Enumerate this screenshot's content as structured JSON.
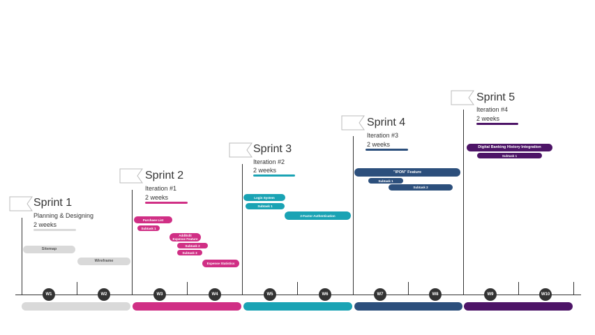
{
  "sprints": [
    {
      "title": "Sprint 1",
      "line1": "Planning & Designing",
      "line2": "2 weeks",
      "color": "#d9d9d9"
    },
    {
      "title": "Sprint 2",
      "line1": "Iteration #1",
      "line2": "2 weeks",
      "color": "#d02f85"
    },
    {
      "title": "Sprint 3",
      "line1": "Iteration #2",
      "line2": "2 weeks",
      "color": "#1aa3b4"
    },
    {
      "title": "Sprint 4",
      "line1": "Iteration #3",
      "line2": "2 weeks",
      "color": "#2c4f7c"
    },
    {
      "title": "Sprint 5",
      "line1": "Iteration #4",
      "line2": "2 weeks",
      "color": "#4d1467"
    }
  ],
  "tasks": {
    "sitemap": "Sitemap",
    "wireframe": "Wireframe",
    "purchase_list": "Purchase List",
    "s2_subtask1": "Subtask 1",
    "add_edit_1": "Add/Edit",
    "add_edit_2": "Expense Feature",
    "s2_subtask2": "Subtask 2",
    "s2_subtask3": "Subtask 3",
    "expense_stats": "Expense Statistics",
    "login_system": "Login System",
    "s3_subtask1": "Subtask 1",
    "two_factor": "2-Factor Authentication",
    "ipon": "\"IPON\" Feature",
    "s4_subtask1": "Subtask 1",
    "s4_subtask2": "Subtask 2",
    "digital_banking": "Digital Banking History Integration",
    "s5_subtask1": "Subtask 1"
  },
  "weeks": [
    "W1",
    "W2",
    "W3",
    "W4",
    "W5",
    "W6",
    "W7",
    "W8",
    "W9",
    "W10"
  ]
}
